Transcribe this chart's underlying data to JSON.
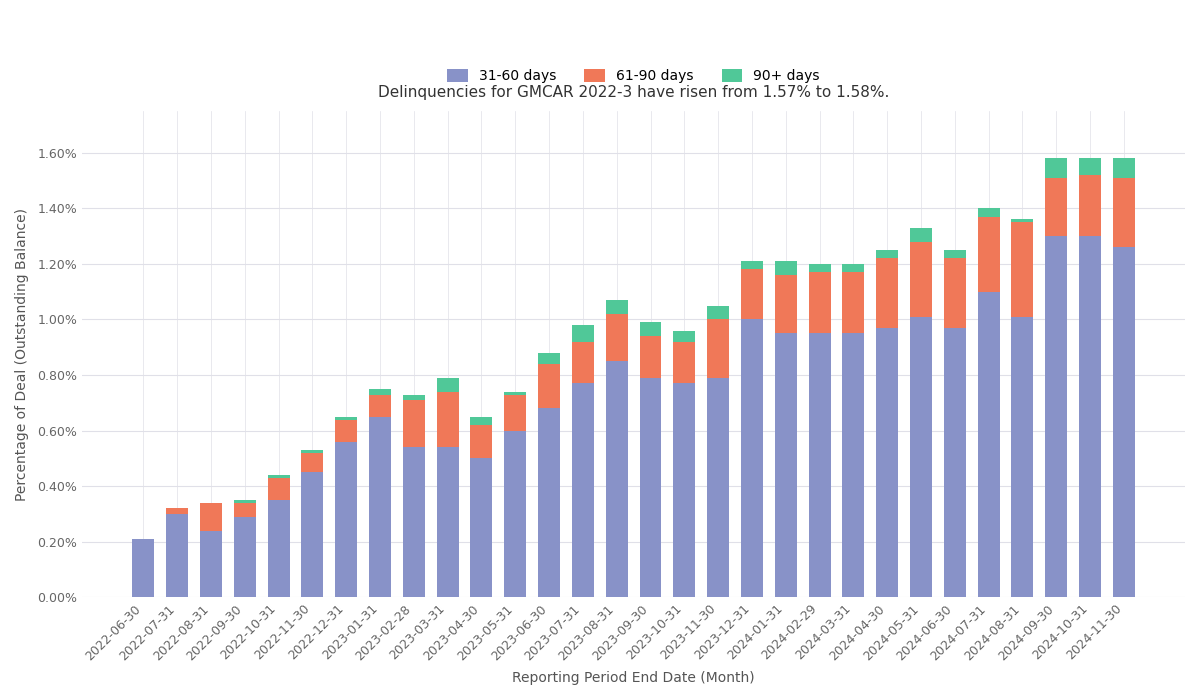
{
  "title": "Delinquencies for GMCAR 2022-3 have risen from 1.57% to 1.58%.",
  "xlabel": "Reporting Period End Date (Month)",
  "ylabel": "Percentage of Deal (Outstanding Balance)",
  "categories": [
    "2022-06-30",
    "2022-07-31",
    "2022-08-31",
    "2022-09-30",
    "2022-10-31",
    "2022-11-30",
    "2022-12-31",
    "2023-01-31",
    "2023-02-28",
    "2023-03-31",
    "2023-04-30",
    "2023-05-31",
    "2023-06-30",
    "2023-07-31",
    "2023-08-31",
    "2023-09-30",
    "2023-10-31",
    "2023-11-30",
    "2023-12-31",
    "2024-01-31",
    "2024-02-29",
    "2024-03-31",
    "2024-04-30",
    "2024-05-31",
    "2024-06-30",
    "2024-07-31",
    "2024-08-31",
    "2024-09-30",
    "2024-10-31",
    "2024-11-30"
  ],
  "series_31_60": [
    0.0021,
    0.003,
    0.0024,
    0.0029,
    0.0035,
    0.0045,
    0.0056,
    0.0065,
    0.0054,
    0.0054,
    0.005,
    0.006,
    0.0068,
    0.0077,
    0.0085,
    0.0079,
    0.0077,
    0.0079,
    0.01,
    0.0095,
    0.0095,
    0.0095,
    0.0097,
    0.0101,
    0.0097,
    0.011,
    0.0101,
    0.013,
    0.013,
    0.0126
  ],
  "series_61_90": [
    0.0,
    0.0002,
    0.001,
    0.0005,
    0.0008,
    0.0007,
    0.0008,
    0.0008,
    0.0017,
    0.002,
    0.0012,
    0.0013,
    0.0016,
    0.0015,
    0.0017,
    0.0015,
    0.0015,
    0.0021,
    0.0018,
    0.0021,
    0.0022,
    0.0022,
    0.0025,
    0.0027,
    0.0025,
    0.0027,
    0.0034,
    0.0021,
    0.0022,
    0.0025
  ],
  "series_90plus": [
    0.0,
    0.0,
    0.0,
    0.0001,
    0.0001,
    0.0001,
    0.0001,
    0.0002,
    0.0002,
    0.0005,
    0.0003,
    0.0001,
    0.0004,
    0.0006,
    0.0005,
    0.0005,
    0.0004,
    0.0005,
    0.0003,
    0.0005,
    0.0003,
    0.0003,
    0.0003,
    0.0005,
    0.0003,
    0.0003,
    0.0001,
    0.0007,
    0.0006,
    0.0007
  ],
  "color_31_60": "#8892C8",
  "color_61_90": "#F07858",
  "color_90plus": "#50C898",
  "ylim_max": 0.0175,
  "yticks": [
    0.0,
    0.002,
    0.004,
    0.006,
    0.008,
    0.01,
    0.012,
    0.014,
    0.016
  ],
  "ytick_labels": [
    "0.00%",
    "0.20%",
    "0.40%",
    "0.60%",
    "0.80%",
    "1.00%",
    "1.20%",
    "1.40%",
    "1.60%"
  ],
  "legend_labels": [
    "31-60 days",
    "61-90 days",
    "90+ days"
  ],
  "bg_color": "#ffffff",
  "grid_color": "#e0e0e8",
  "bar_width": 0.65,
  "title_fontsize": 11,
  "axis_label_fontsize": 10,
  "tick_fontsize": 9
}
